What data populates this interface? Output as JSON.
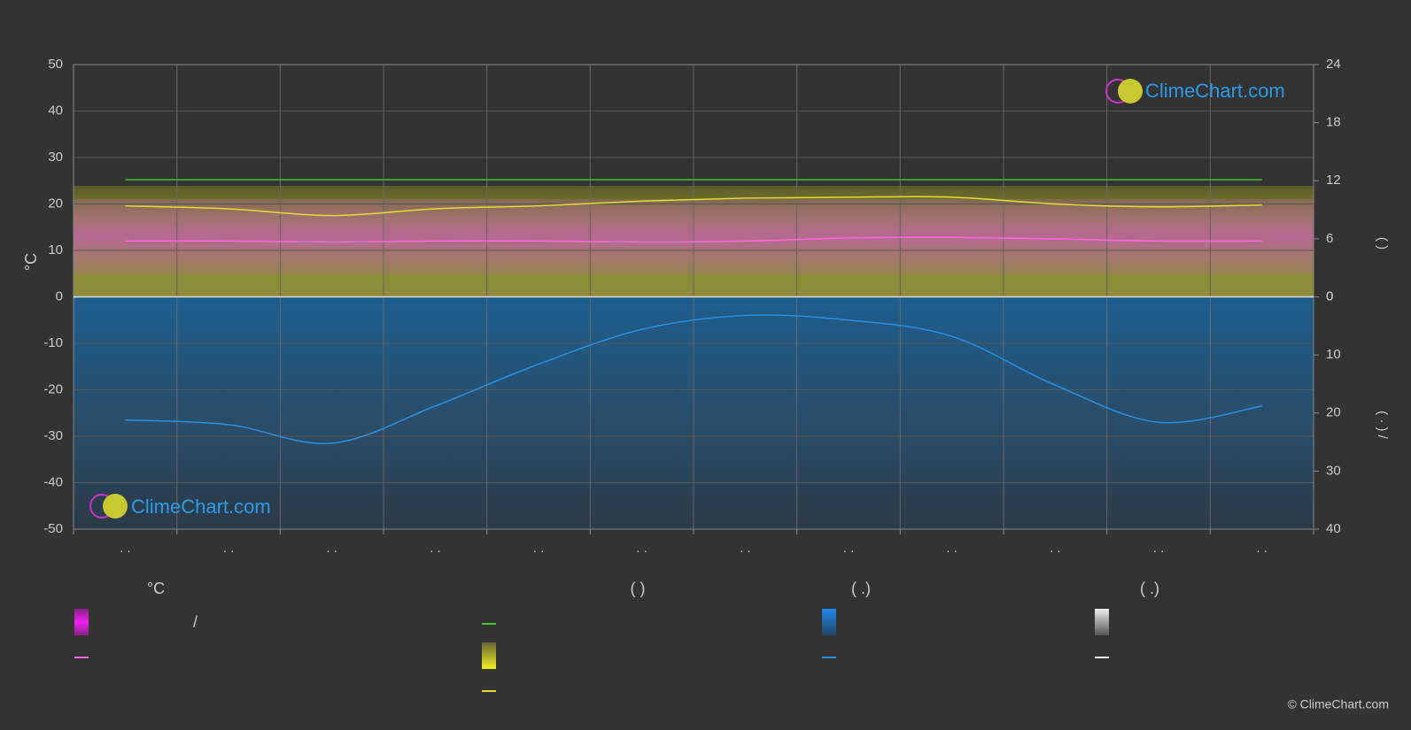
{
  "chart_data": {
    "type": "climate",
    "y_label": "°C",
    "y2_label": "(     )",
    "y3_label": "(  ·  )     /",
    "categories": [
      ". .",
      ". .",
      ". .",
      ". .",
      ". .",
      ". .",
      ". .",
      ". .",
      ". .",
      ". .",
      ". .",
      ". ."
    ],
    "ylim": [
      -50,
      50
    ],
    "yticks": [
      -50,
      -40,
      -30,
      -20,
      -10,
      0,
      10,
      20,
      30,
      40,
      50
    ],
    "y2lim": [
      0,
      24
    ],
    "y2ticks": [
      0,
      6,
      12,
      18,
      24
    ],
    "y3lim": [
      0,
      40
    ],
    "y3ticks": [
      0,
      10,
      20,
      30,
      40
    ],
    "grid": true,
    "series": [
      {
        "color": "#44cc22",
        "axis": "y2",
        "values": [
          12.1,
          12.1,
          12.1,
          12.1,
          12.1,
          12.1,
          12.1,
          12.1,
          12.1,
          12.1,
          12.1,
          12.1
        ]
      },
      {
        "color": "#e0e030",
        "axis": "y2",
        "values": [
          9.4,
          9.1,
          8.4,
          9.1,
          9.4,
          9.9,
          10.2,
          10.3,
          10.3,
          9.6,
          9.3,
          9.5
        ]
      },
      {
        "color": "#ff66dd",
        "axis": "y",
        "values": [
          12,
          12,
          11.8,
          12,
          12,
          11.8,
          12,
          12.7,
          12.8,
          12.5,
          12,
          12
        ]
      },
      {
        "color": "#2a8fe0",
        "axis": "y3",
        "values": [
          21.2,
          22,
          25.2,
          18.8,
          11.6,
          5.6,
          3.2,
          4,
          6.8,
          15.2,
          21.6,
          18.8
        ]
      }
    ],
    "legend_headings": [
      "°C",
      "(          )",
      "(    .)",
      "(    .)"
    ],
    "legend_text": [
      "/"
    ],
    "watermark": "ClimeChart.com",
    "copyright": "© ClimeChart.com"
  }
}
